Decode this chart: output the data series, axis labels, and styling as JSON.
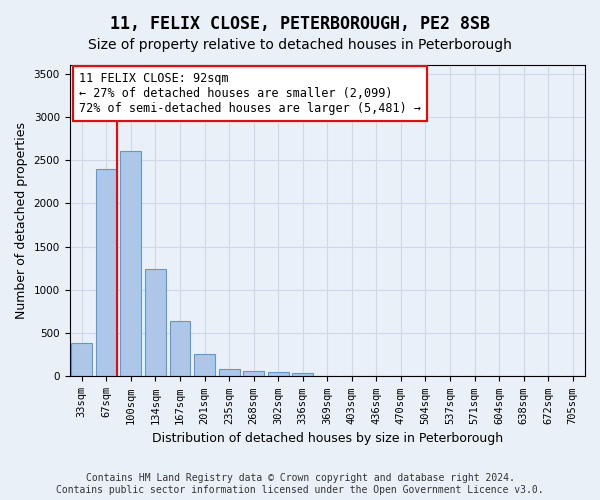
{
  "title": "11, FELIX CLOSE, PETERBOROUGH, PE2 8SB",
  "subtitle": "Size of property relative to detached houses in Peterborough",
  "xlabel": "Distribution of detached houses by size in Peterborough",
  "ylabel": "Number of detached properties",
  "categories": [
    "33sqm",
    "67sqm",
    "100sqm",
    "134sqm",
    "167sqm",
    "201sqm",
    "235sqm",
    "268sqm",
    "302sqm",
    "336sqm",
    "369sqm",
    "403sqm",
    "436sqm",
    "470sqm",
    "504sqm",
    "537sqm",
    "571sqm",
    "604sqm",
    "638sqm",
    "672sqm",
    "705sqm"
  ],
  "values": [
    390,
    2400,
    2610,
    1240,
    640,
    255,
    90,
    60,
    55,
    40,
    0,
    0,
    0,
    0,
    0,
    0,
    0,
    0,
    0,
    0,
    0
  ],
  "bar_color": "#aec6e8",
  "bar_edge_color": "#5b9bd5",
  "grid_color": "#d0d8e8",
  "background_color": "#eaf0f8",
  "vline_color": "red",
  "ylim": [
    0,
    3600
  ],
  "yticks": [
    0,
    500,
    1000,
    1500,
    2000,
    2500,
    3000,
    3500
  ],
  "annotation_text": "11 FELIX CLOSE: 92sqm\n← 27% of detached houses are smaller (2,099)\n72% of semi-detached houses are larger (5,481) →",
  "annotation_box_color": "white",
  "annotation_box_edge_color": "red",
  "footer_text": "Contains HM Land Registry data © Crown copyright and database right 2024.\nContains public sector information licensed under the Open Government Licence v3.0.",
  "title_fontsize": 12,
  "subtitle_fontsize": 10,
  "xlabel_fontsize": 9,
  "ylabel_fontsize": 9,
  "tick_fontsize": 7.5,
  "annotation_fontsize": 8.5,
  "footer_fontsize": 7
}
